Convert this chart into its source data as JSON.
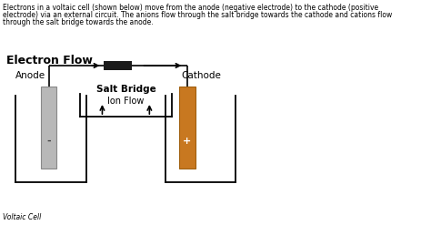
{
  "bg_color": "#ffffff",
  "text_color": "#000000",
  "desc_lines": [
    "Electrons in a voltaic cell (shown below) move from the anode (negative electrode) to the cathode (positive",
    "electrode) via an external circuit. The anions flow through the salt bridge towards the cathode and cations flow",
    "through the salt bridge towards the anode."
  ],
  "title": "Electron Flow",
  "label_anode": "Anode",
  "label_cathode": "Cathode",
  "label_salt_bridge": "Salt Bridge",
  "label_ion_flow": "Ion Flow",
  "label_caption": "Voltaic Cell",
  "sign_anode": "-",
  "sign_cathode": "+",
  "anode_color": "#b8b8b8",
  "cathode_color": "#c87820",
  "beaker_edge": "#000000",
  "wire_color": "#000000",
  "resistor_color": "#1a1a1a",
  "salt_bridge_color": "#111111",
  "desc_fontsize": 5.5,
  "title_fontsize": 9,
  "label_fontsize": 7.5,
  "caption_fontsize": 5.5
}
